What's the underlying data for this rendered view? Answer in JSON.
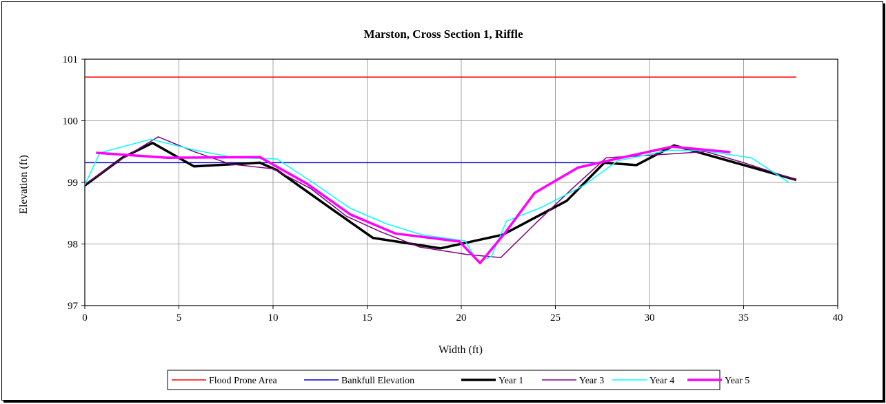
{
  "chart_data": {
    "type": "line",
    "title": "Marston, Cross Section 1, Riffle",
    "xlabel": "Width (ft)",
    "ylabel": "Elevation (ft)",
    "xlim": [
      0,
      40
    ],
    "ylim": [
      97,
      101
    ],
    "xticks": [
      "0",
      "5",
      "10",
      "15",
      "20",
      "25",
      "30",
      "35",
      "40"
    ],
    "yticks": [
      "97",
      "98",
      "99",
      "100",
      "101"
    ],
    "grid": true,
    "legend_position": "bottom",
    "series": [
      {
        "name": "Flood Prone Area",
        "color": "#ff0000",
        "width": 1.5,
        "x": [
          0,
          37.8
        ],
        "y": [
          100.71,
          100.71
        ]
      },
      {
        "name": "Bankfull Elevation",
        "color": "#0000cc",
        "width": 1.5,
        "x": [
          0,
          27.5
        ],
        "y": [
          99.32,
          99.32
        ]
      },
      {
        "name": "Year 1",
        "color": "#000000",
        "width": 3.5,
        "x": [
          0,
          2.0,
          3.6,
          5.8,
          9.3,
          10.2,
          13.2,
          15.3,
          18.9,
          22.2,
          25.6,
          27.6,
          29.3,
          31.3,
          37.8
        ],
        "y": [
          98.95,
          99.4,
          99.64,
          99.26,
          99.32,
          99.2,
          98.55,
          98.1,
          97.93,
          98.15,
          98.7,
          99.32,
          99.28,
          99.6,
          99.04
        ]
      },
      {
        "name": "Year 3",
        "color": "#800080",
        "width": 1.5,
        "x": [
          0,
          1.8,
          3.9,
          5.8,
          7.7,
          10.0,
          12.0,
          13.9,
          15.7,
          17.8,
          20.3,
          22.1,
          24.0,
          25.9,
          27.7,
          30.0,
          33.0,
          35.0,
          37.8
        ],
        "y": [
          98.97,
          99.35,
          99.74,
          99.5,
          99.3,
          99.22,
          98.9,
          98.45,
          98.2,
          97.95,
          97.83,
          97.78,
          98.35,
          98.9,
          99.4,
          99.44,
          99.5,
          99.32,
          99.04
        ]
      },
      {
        "name": "Year 4",
        "color": "#00ffff",
        "width": 1.5,
        "x": [
          0,
          0.8,
          3.5,
          5.9,
          8.0,
          10.2,
          12.1,
          14.1,
          16.0,
          17.9,
          20.2,
          20.9,
          21.6,
          22.4,
          24.3,
          26.5,
          28.3,
          31.0,
          32.7,
          35.4,
          37.4
        ],
        "y": [
          98.96,
          99.48,
          99.7,
          99.52,
          99.4,
          99.38,
          99.0,
          98.58,
          98.33,
          98.15,
          98.05,
          97.7,
          97.8,
          98.37,
          98.6,
          98.95,
          99.35,
          99.52,
          99.52,
          99.4,
          99.0
        ]
      },
      {
        "name": "Year 5",
        "color": "#ff00ff",
        "width": 3.5,
        "x": [
          0.6,
          4.4,
          9.3,
          11.8,
          14.1,
          16.5,
          19.9,
          21.0,
          22.3,
          23.9,
          26.2,
          28.2,
          31.2,
          34.3
        ],
        "y": [
          99.48,
          99.4,
          99.41,
          98.98,
          98.48,
          98.17,
          98.04,
          97.69,
          98.17,
          98.83,
          99.24,
          99.38,
          99.58,
          99.49
        ]
      }
    ]
  }
}
